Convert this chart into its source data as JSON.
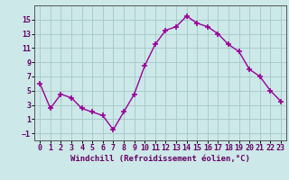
{
  "x": [
    0,
    1,
    2,
    3,
    4,
    5,
    6,
    7,
    8,
    9,
    10,
    11,
    12,
    13,
    14,
    15,
    16,
    17,
    18,
    19,
    20,
    21,
    22,
    23
  ],
  "y": [
    6,
    2.5,
    4.5,
    4,
    2.5,
    2,
    1.5,
    -0.5,
    2,
    4.5,
    8.5,
    11.5,
    13.5,
    14,
    15.5,
    14.5,
    14,
    13,
    11.5,
    10.5,
    8,
    7,
    5,
    3.5
  ],
  "line_color": "#990099",
  "marker": "+",
  "marker_size": 4,
  "marker_edge_width": 1.2,
  "line_width": 1.0,
  "xlabel": "Windchill (Refroidissement éolien,°C)",
  "xlabel_fontsize": 6.5,
  "xlim": [
    -0.5,
    23.5
  ],
  "ylim": [
    -2,
    17
  ],
  "yticks": [
    -1,
    1,
    3,
    5,
    7,
    9,
    11,
    13,
    15
  ],
  "xticks": [
    0,
    1,
    2,
    3,
    4,
    5,
    6,
    7,
    8,
    9,
    10,
    11,
    12,
    13,
    14,
    15,
    16,
    17,
    18,
    19,
    20,
    21,
    22,
    23
  ],
  "bg_color": "#cce8e8",
  "grid_color": "#aacccc",
  "tick_label_fontsize": 6,
  "label_color": "#660066",
  "spine_color": "#555555"
}
